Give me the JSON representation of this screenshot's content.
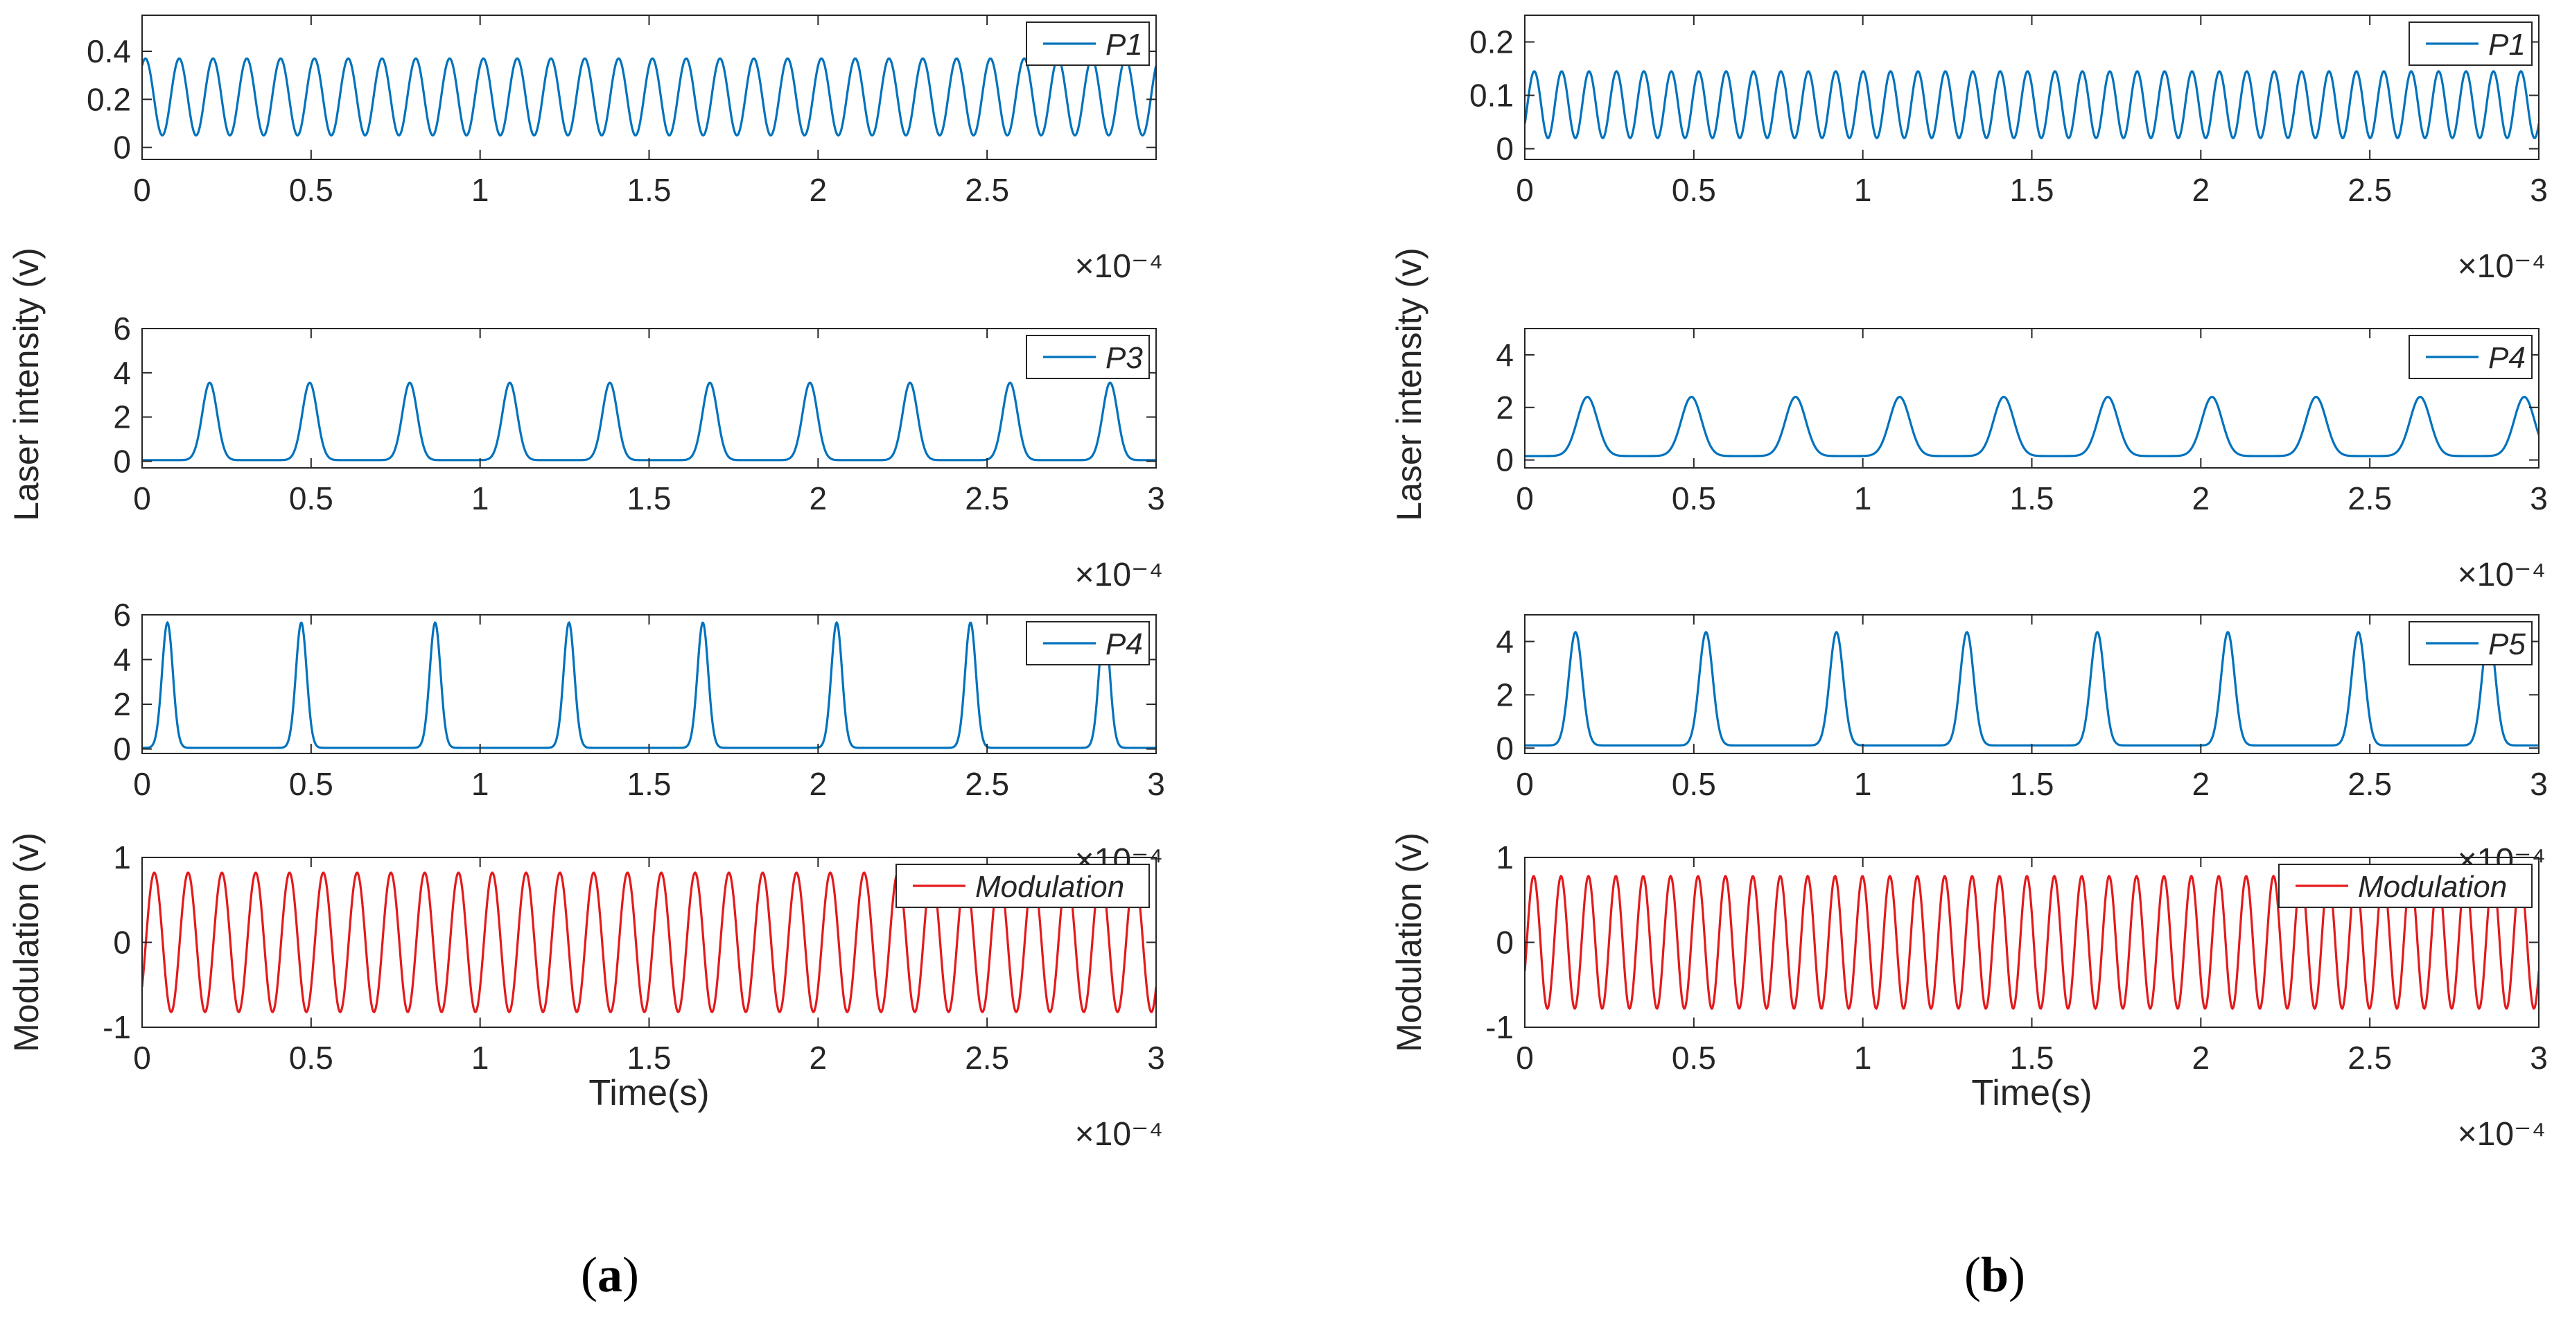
{
  "figure": {
    "panel_labels": [
      "(a)",
      "(b)"
    ],
    "y_label_intensity": "Laser intensity (v)",
    "y_label_modulation": "Modulation (v)",
    "x_label": "Time(s)",
    "x_exponent": "×10⁻⁴",
    "colors": {
      "signal": "#0072BD",
      "modulation": "#E31A1C",
      "axis": "#262626"
    }
  },
  "chart_data": [
    {
      "type": "line",
      "panel": "a",
      "row": 1,
      "title": "",
      "xlabel": "",
      "ylabel": "",
      "xlim": [
        0,
        3
      ],
      "x_exponent": "×10⁻⁴",
      "ylim": [
        -0.05,
        0.55
      ],
      "xticks": [
        "0",
        "0.5",
        "1",
        "1.5",
        "2",
        "2.5"
      ],
      "xtick_values": [
        0,
        0.5,
        1,
        1.5,
        2,
        2.5
      ],
      "yticks": [
        "0",
        "0.2",
        "0.4"
      ],
      "ytick_values": [
        0,
        0.2,
        0.4
      ],
      "legend": "top-right",
      "series": [
        {
          "name": "P1",
          "color": "#0072BD",
          "shape": "sine",
          "cycles": 30,
          "min": 0.05,
          "max": 0.37,
          "phase": 0.95
        }
      ]
    },
    {
      "type": "line",
      "panel": "a",
      "row": 2,
      "title": "",
      "xlabel": "",
      "ylabel": "",
      "xlim": [
        0,
        3
      ],
      "x_exponent": "×10⁻⁴",
      "ylim": [
        -0.3,
        6
      ],
      "xticks": [
        "0",
        "0.5",
        "1",
        "1.5",
        "2",
        "2.5",
        "3"
      ],
      "xtick_values": [
        0,
        0.5,
        1,
        1.5,
        2,
        2.5,
        3
      ],
      "yticks": [
        "0",
        "2",
        "4",
        "6"
      ],
      "ytick_values": [
        0,
        2,
        4,
        6
      ],
      "legend": "top-right",
      "series": [
        {
          "name": "P3",
          "color": "#0072BD",
          "shape": "pulses",
          "base": 0.05,
          "peak": 3.55,
          "first_peak": 0.2,
          "period": 0.296,
          "width": 0.022
        }
      ]
    },
    {
      "type": "line",
      "panel": "a",
      "row": 3,
      "title": "",
      "xlabel": "",
      "ylabel": "",
      "xlim": [
        0,
        3
      ],
      "x_exponent": "×10⁻⁴",
      "ylim": [
        -0.2,
        6
      ],
      "xticks": [
        "0",
        "0.5",
        "1",
        "1.5",
        "2",
        "2.5",
        "3"
      ],
      "xtick_values": [
        0,
        0.5,
        1,
        1.5,
        2,
        2.5,
        3
      ],
      "yticks": [
        "0",
        "2",
        "4",
        "6"
      ],
      "ytick_values": [
        0,
        2,
        4,
        6
      ],
      "legend": "top-right",
      "series": [
        {
          "name": "P4",
          "color": "#0072BD",
          "shape": "pulses",
          "base": 0.05,
          "peak": 5.65,
          "first_peak": 0.075,
          "period": 0.396,
          "width": 0.016
        }
      ]
    },
    {
      "type": "line",
      "panel": "a",
      "row": 4,
      "title": "",
      "xlabel": "Time(s)",
      "ylabel": "Modulation (v)",
      "xlim": [
        0,
        3
      ],
      "x_exponent": "×10⁻⁴",
      "ylim": [
        -1,
        1
      ],
      "xticks": [
        "0",
        "0.5",
        "1",
        "1.5",
        "2",
        "2.5",
        "3"
      ],
      "xtick_values": [
        0,
        0.5,
        1,
        1.5,
        2,
        2.5,
        3
      ],
      "yticks": [
        "-1",
        "0",
        "1"
      ],
      "ytick_values": [
        -1,
        0,
        1
      ],
      "legend": "top-right",
      "series": [
        {
          "name": "Modulation",
          "color": "#E31A1C",
          "shape": "sine",
          "cycles": 30,
          "min": -0.82,
          "max": 0.82,
          "phase": -0.7
        }
      ]
    },
    {
      "type": "line",
      "panel": "b",
      "row": 1,
      "title": "",
      "xlabel": "",
      "ylabel": "",
      "xlim": [
        0,
        3
      ],
      "x_exponent": "×10⁻⁴",
      "ylim": [
        -0.02,
        0.25
      ],
      "xticks": [
        "0",
        "0.5",
        "1",
        "1.5",
        "2",
        "2.5",
        "3"
      ],
      "xtick_values": [
        0,
        0.5,
        1,
        1.5,
        2,
        2.5,
        3
      ],
      "yticks": [
        "0",
        "0.1",
        "0.2"
      ],
      "ytick_values": [
        0,
        0.1,
        0.2
      ],
      "legend": "top-right",
      "series": [
        {
          "name": "P1",
          "color": "#0072BD",
          "shape": "sine",
          "cycles": 37,
          "min": 0.02,
          "max": 0.145,
          "phase": -0.6
        }
      ]
    },
    {
      "type": "line",
      "panel": "b",
      "row": 2,
      "title": "",
      "xlabel": "",
      "ylabel": "",
      "xlim": [
        0,
        3
      ],
      "x_exponent": "×10⁻⁴",
      "ylim": [
        -0.3,
        5
      ],
      "xticks": [
        "0",
        "0.5",
        "1",
        "1.5",
        "2",
        "2.5",
        "3"
      ],
      "xtick_values": [
        0,
        0.5,
        1,
        1.5,
        2,
        2.5,
        3
      ],
      "yticks": [
        "0",
        "2",
        "4"
      ],
      "ytick_values": [
        0,
        2,
        4
      ],
      "legend": "top-right",
      "series": [
        {
          "name": "P4",
          "color": "#0072BD",
          "shape": "pulses",
          "base": 0.15,
          "peak": 2.4,
          "first_peak": 0.185,
          "period": 0.308,
          "width": 0.03
        }
      ]
    },
    {
      "type": "line",
      "panel": "b",
      "row": 3,
      "title": "",
      "xlabel": "",
      "ylabel": "",
      "xlim": [
        0,
        3
      ],
      "x_exponent": "×10⁻⁴",
      "ylim": [
        -0.2,
        5
      ],
      "xticks": [
        "0",
        "0.5",
        "1",
        "1.5",
        "2",
        "2.5",
        "3"
      ],
      "xtick_values": [
        0,
        0.5,
        1,
        1.5,
        2,
        2.5,
        3
      ],
      "yticks": [
        "0",
        "2",
        "4"
      ],
      "ytick_values": [
        0,
        2,
        4
      ],
      "legend": "top-right",
      "series": [
        {
          "name": "P5",
          "color": "#0072BD",
          "shape": "pulses",
          "base": 0.1,
          "peak": 4.35,
          "first_peak": 0.15,
          "period": 0.386,
          "width": 0.02
        }
      ]
    },
    {
      "type": "line",
      "panel": "b",
      "row": 4,
      "title": "",
      "xlabel": "Time(s)",
      "ylabel": "Modulation (v)",
      "xlim": [
        0,
        3
      ],
      "x_exponent": "×10⁻⁴",
      "ylim": [
        -1,
        1
      ],
      "xticks": [
        "0",
        "0.5",
        "1",
        "1.5",
        "2",
        "2.5",
        "3"
      ],
      "xtick_values": [
        0,
        0.5,
        1,
        1.5,
        2,
        2.5,
        3
      ],
      "yticks": [
        "-1",
        "0",
        "1"
      ],
      "ytick_values": [
        -1,
        0,
        1
      ],
      "legend": "top-right",
      "series": [
        {
          "name": "Modulation",
          "color": "#E31A1C",
          "shape": "sine",
          "cycles": 37,
          "min": -0.78,
          "max": 0.78,
          "phase": -0.45
        }
      ]
    }
  ]
}
